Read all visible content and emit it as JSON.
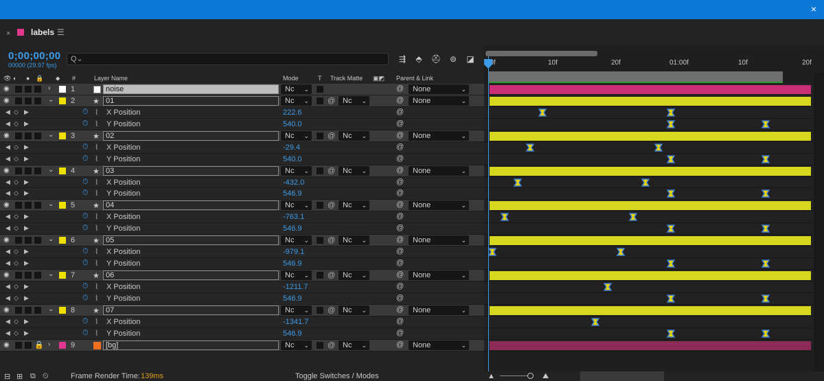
{
  "colors": {
    "title_bar": "#0e78d7",
    "accent_blue": "#3d9be9",
    "pink_label": "#e0388f",
    "yellow_label": "#f0e000",
    "orange_label": "#f07020",
    "white_label": "#ffffff",
    "pink_bar": "#c92e77",
    "dark_pink_bar": "#8e2a58",
    "yellow_bar": "#d7d71f",
    "keyframe_fill": "#e8d200",
    "keyframe_stroke": "#3d7fd6"
  },
  "window": {
    "close_icon": "×"
  },
  "panel": {
    "close_glyph": "×",
    "title": "labels",
    "menu_glyph": "☰"
  },
  "header": {
    "timecode": "0;00;00;00",
    "frames": "00000 (29.97 fps)",
    "search_placeholder": "",
    "search_icon": "Q⌄"
  },
  "toolbar_icons": [
    "composition-mini-flowchart-icon",
    "draft-3d-icon",
    "hide-shy-icon",
    "frame-blending-icon",
    "motion-blur-icon",
    "graph-editor-icon"
  ],
  "columns": {
    "layer_name": "Layer Name",
    "mode": "Mode",
    "t": "T",
    "track_matte": "Track Matte",
    "parent_link": "Parent & Link",
    "hash": "#"
  },
  "ruler": {
    "ticks": [
      ":00f",
      "10f",
      "20f",
      "01:00f",
      "10f",
      "20f"
    ]
  },
  "rows": [
    {
      "kind": "layer",
      "num": "1",
      "name": "noise",
      "label": "white",
      "type": "solid",
      "mode": "Nc",
      "matte": "",
      "parent": "None",
      "selected": true,
      "twirl": "›",
      "bar": "pink"
    },
    {
      "kind": "layer",
      "num": "2",
      "name": "01",
      "label": "yellow",
      "type": "shape",
      "mode": "Nc",
      "matte": "Nc",
      "parent": "None",
      "twirl": "⌄",
      "bar": "yellow"
    },
    {
      "kind": "prop",
      "name": "X Position",
      "value": "222.6",
      "keys": [
        0.165,
        0.565
      ]
    },
    {
      "kind": "prop",
      "name": "Y Position",
      "value": "540.0",
      "keys": [
        0.565,
        0.86
      ]
    },
    {
      "kind": "layer",
      "num": "3",
      "name": "02",
      "label": "yellow",
      "type": "shape",
      "mode": "Nc",
      "matte": "Nc",
      "parent": "None",
      "twirl": "⌄",
      "bar": "yellow"
    },
    {
      "kind": "prop",
      "name": "X Position",
      "value": "-29.4",
      "keys": [
        0.125,
        0.525
      ]
    },
    {
      "kind": "prop",
      "name": "Y Position",
      "value": "540.0",
      "keys": [
        0.565,
        0.86
      ]
    },
    {
      "kind": "layer",
      "num": "4",
      "name": "03",
      "label": "yellow",
      "type": "shape",
      "mode": "Nc",
      "matte": "Nc",
      "parent": "None",
      "twirl": "⌄",
      "bar": "yellow"
    },
    {
      "kind": "prop",
      "name": "X Position",
      "value": "-432.0",
      "keys": [
        0.087,
        0.486
      ]
    },
    {
      "kind": "prop",
      "name": "Y Position",
      "value": "546.9",
      "keys": [
        0.565,
        0.86
      ]
    },
    {
      "kind": "layer",
      "num": "5",
      "name": "04",
      "label": "yellow",
      "type": "shape",
      "mode": "Nc",
      "matte": "Nc",
      "parent": "None",
      "twirl": "⌄",
      "bar": "yellow"
    },
    {
      "kind": "prop",
      "name": "X Position",
      "value": "-763.1",
      "keys": [
        0.048,
        0.447
      ]
    },
    {
      "kind": "prop",
      "name": "Y Position",
      "value": "546.9",
      "keys": [
        0.565,
        0.86
      ]
    },
    {
      "kind": "layer",
      "num": "6",
      "name": "05",
      "label": "yellow",
      "type": "shape",
      "mode": "Nc",
      "matte": "Nc",
      "parent": "None",
      "twirl": "⌄",
      "bar": "yellow"
    },
    {
      "kind": "prop",
      "name": "X Position",
      "value": "-979.1",
      "keys": [
        0.008,
        0.408
      ]
    },
    {
      "kind": "prop",
      "name": "Y Position",
      "value": "546.9",
      "keys": [
        0.565,
        0.86
      ]
    },
    {
      "kind": "layer",
      "num": "7",
      "name": "06",
      "label": "yellow",
      "type": "shape",
      "mode": "Nc",
      "matte": "Nc",
      "parent": "None",
      "twirl": "⌄",
      "bar": "yellow"
    },
    {
      "kind": "prop",
      "name": "X Position",
      "value": "-1211.7",
      "keys": [
        0.368
      ]
    },
    {
      "kind": "prop",
      "name": "Y Position",
      "value": "546.9",
      "keys": [
        0.565,
        0.86
      ]
    },
    {
      "kind": "layer",
      "num": "8",
      "name": "07",
      "label": "yellow",
      "type": "shape",
      "mode": "Nc",
      "matte": "Nc",
      "parent": "None",
      "twirl": "⌄",
      "bar": "yellow"
    },
    {
      "kind": "prop",
      "name": "X Position",
      "value": "-1341.7",
      "keys": [
        0.33
      ]
    },
    {
      "kind": "prop",
      "name": "Y Position",
      "value": "546.9",
      "keys": [
        0.565,
        0.86
      ]
    },
    {
      "kind": "layer",
      "num": "9",
      "name": "[bg]",
      "label": "pink",
      "type": "solid-orange",
      "mode": "Nc",
      "matte": "Nc",
      "parent": "None",
      "locked": true,
      "twirl": "›",
      "bar": "darkpink"
    }
  ],
  "footer": {
    "render_label": "Frame Render Time:",
    "render_value": "139ms",
    "toggle": "Toggle Switches / Modes"
  }
}
